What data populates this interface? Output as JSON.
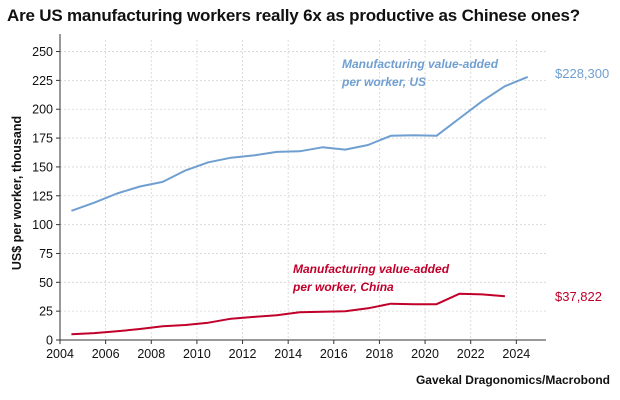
{
  "title": "Are US manufacturing workers really 6x as productive as Chinese ones?",
  "source": "Gavekal Dragonomics/Macrobond",
  "chart_data": {
    "type": "line",
    "title": "Are US manufacturing workers really 6x as productive as Chinese ones?",
    "xlabel": "",
    "ylabel": "US$ per worker, thousand",
    "xlim": [
      2004,
      2025.3
    ],
    "ylim": [
      0,
      260
    ],
    "xticks": [
      "2004",
      "2006",
      "2008",
      "2010",
      "2012",
      "2014",
      "2016",
      "2018",
      "2020",
      "2022",
      "2024"
    ],
    "yticks": [
      "0",
      "25",
      "50",
      "75",
      "100",
      "125",
      "150",
      "175",
      "200",
      "225",
      "250"
    ],
    "grid": true,
    "series": [
      {
        "name": "Manufacturing value-added per worker, US",
        "label_line1": "Manufacturing value-added",
        "label_line2": "per worker, US",
        "end_label": "$228,300",
        "color": "#6f9fd0",
        "x": [
          2004.5,
          2005.5,
          2006.5,
          2007.5,
          2008.5,
          2009.5,
          2010.5,
          2011.5,
          2012.5,
          2013.5,
          2014.5,
          2015.5,
          2016.5,
          2017.5,
          2018.5,
          2019.5,
          2020.5,
          2021.5,
          2022.5,
          2023.5,
          2024.5
        ],
        "y": [
          112,
          119,
          127,
          133,
          137,
          147,
          154,
          158,
          160,
          163,
          163.5,
          167,
          165,
          169,
          177,
          177.5,
          177,
          192,
          207,
          220,
          228
        ]
      },
      {
        "name": "Manufacturing value-added per worker, China",
        "label_line1": "Manufacturing value-added",
        "label_line2": "per worker, China",
        "end_label": "$37,822",
        "color": "#c0002a",
        "x": [
          2004.5,
          2005.5,
          2006.5,
          2007.5,
          2008.5,
          2009.5,
          2010.5,
          2011.5,
          2012.5,
          2013.5,
          2014.5,
          2015.5,
          2016.5,
          2017.5,
          2018.5,
          2019.5,
          2020.5,
          2021.5,
          2022.5,
          2023.5
        ],
        "y": [
          5,
          6,
          7.5,
          9.5,
          12,
          13,
          15,
          18.5,
          20,
          21.5,
          24,
          24.5,
          25,
          27.5,
          31.5,
          31,
          31,
          40,
          39.5,
          38
        ]
      }
    ]
  }
}
